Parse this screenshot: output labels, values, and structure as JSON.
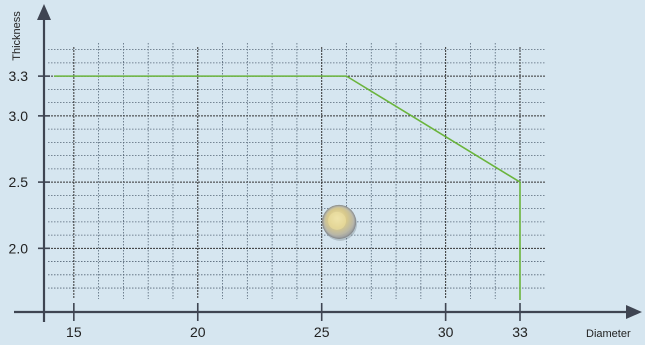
{
  "chart_data": {
    "type": "line",
    "xlabel": "Diameter",
    "ylabel": "Thickness",
    "xlim": [
      14.2,
      33
    ],
    "ylim": [
      1.61,
      3.55
    ],
    "x_ticks": [
      {
        "value": 15,
        "label": "15"
      },
      {
        "value": 20,
        "label": "20"
      },
      {
        "value": 25,
        "label": "25"
      },
      {
        "value": 30,
        "label": "30"
      },
      {
        "value": 33,
        "label": "33"
      }
    ],
    "y_ticks": [
      {
        "value": 2.0,
        "label": "2.0"
      },
      {
        "value": 2.5,
        "label": "2.5"
      },
      {
        "value": 3.0,
        "label": "3.0"
      },
      {
        "value": 3.3,
        "label": "3.3"
      }
    ],
    "series": [
      {
        "color": "#6ab43c",
        "x": [
          14.2,
          26.0,
          33.0,
          33.0
        ],
        "y": [
          3.3,
          3.3,
          2.5,
          1.61
        ]
      }
    ],
    "marker": {
      "x": 25.7,
      "y": 2.2,
      "icon": "coin-icon"
    },
    "grid": true,
    "grid_minor_x_step": 1,
    "grid_minor_y_step": 0.1
  }
}
